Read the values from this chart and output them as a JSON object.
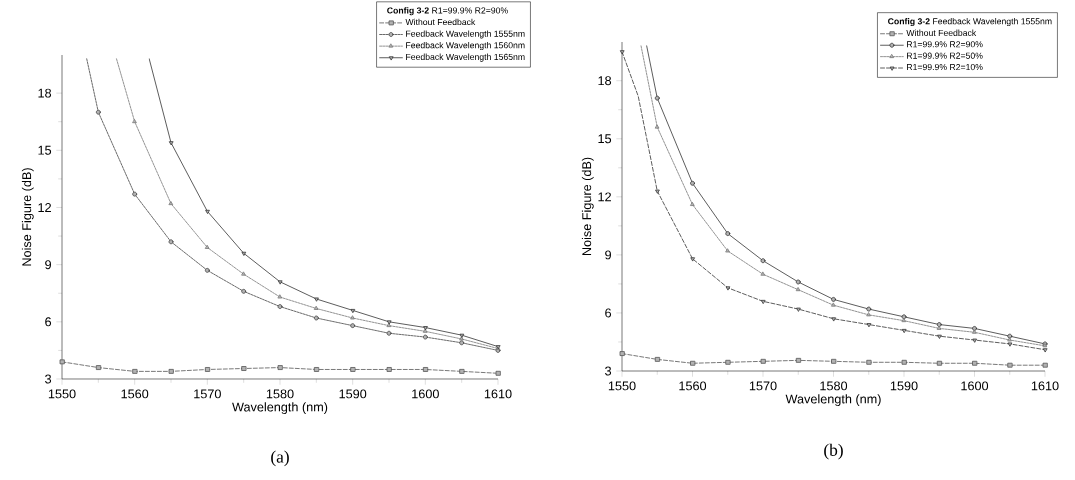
{
  "chart_data": [
    {
      "type": "line",
      "xlabel": "Wavelength (nm)",
      "ylabel": "Noise Figure (dB)",
      "legend_title": "**Config 3-2** R1=99.9% R2=90%",
      "legend": "top right",
      "grid": false,
      "xlim": [
        1550,
        1610
      ],
      "ylim": [
        3,
        20
      ],
      "xticks": [
        1550,
        1560,
        1570,
        1580,
        1590,
        1600,
        1610
      ],
      "yticks": [
        3,
        6,
        9,
        12,
        15,
        18
      ],
      "annotations": [
        "(a)"
      ],
      "series": [
        {
          "name": "Without Feedback",
          "color": "#555555",
          "marker": "square",
          "line_style": "dashed",
          "x": [
            1550,
            1555,
            1560,
            1565,
            1570,
            1575,
            1580,
            1585,
            1590,
            1595,
            1600,
            1605,
            1610
          ],
          "values": [
            3.9,
            3.6,
            3.4,
            3.4,
            3.5,
            3.55,
            3.6,
            3.5,
            3.5,
            3.5,
            3.5,
            3.4,
            3.3
          ]
        },
        {
          "name": "Feedback Wavelength 1555nm",
          "color": "#444444",
          "marker": "circle",
          "line_style": "dotted",
          "x": [
            1553.4,
            1555,
            1560,
            1565,
            1570,
            1575,
            1580,
            1585,
            1590,
            1595,
            1600,
            1605,
            1610
          ],
          "values": [
            19.8,
            17.0,
            12.7,
            10.2,
            8.7,
            7.6,
            6.8,
            6.2,
            5.8,
            5.4,
            5.2,
            4.9,
            4.5
          ]
        },
        {
          "name": "Feedback Wavelength 1560nm",
          "color": "#777777",
          "marker": "triangle",
          "line_style": "dotted",
          "x": [
            1557.5,
            1560,
            1565,
            1570,
            1575,
            1580,
            1585,
            1590,
            1595,
            1600,
            1605,
            1610
          ],
          "values": [
            19.8,
            16.5,
            12.2,
            9.9,
            8.5,
            7.3,
            6.7,
            6.2,
            5.8,
            5.5,
            5.1,
            4.6
          ]
        },
        {
          "name": "Feedback Wavelength 1565nm",
          "color": "#333333",
          "marker": "triangle-down",
          "line_style": "solid",
          "x": [
            1562,
            1565,
            1570,
            1575,
            1580,
            1585,
            1590,
            1595,
            1600,
            1605,
            1610
          ],
          "values": [
            19.8,
            15.4,
            11.8,
            9.6,
            8.1,
            7.2,
            6.6,
            6.0,
            5.7,
            5.3,
            4.7
          ]
        }
      ]
    },
    {
      "type": "line",
      "xlabel": "Wavelength (nm)",
      "ylabel": "Noise Figure (dB)",
      "legend_title": "**Config 3-2** Feedback Wavelength 1555nm",
      "legend": "top right",
      "grid": false,
      "xlim": [
        1550,
        1610
      ],
      "ylim": [
        3,
        20
      ],
      "xticks": [
        1550,
        1560,
        1570,
        1580,
        1590,
        1600,
        1610
      ],
      "yticks": [
        3,
        6,
        9,
        12,
        15,
        18
      ],
      "annotations": [
        "(b)"
      ],
      "series": [
        {
          "name": "Without Feedback",
          "color": "#555555",
          "marker": "square",
          "line_style": "dashed",
          "x": [
            1550,
            1555,
            1560,
            1565,
            1570,
            1575,
            1580,
            1585,
            1590,
            1595,
            1600,
            1605,
            1610
          ],
          "values": [
            3.9,
            3.6,
            3.4,
            3.45,
            3.5,
            3.55,
            3.5,
            3.45,
            3.45,
            3.4,
            3.4,
            3.3,
            3.3
          ]
        },
        {
          "name": "R1=99.9% R2=90%",
          "color": "#333333",
          "marker": "circle",
          "line_style": "solid",
          "x": [
            1553.5,
            1555,
            1560,
            1565,
            1570,
            1575,
            1580,
            1585,
            1590,
            1595,
            1600,
            1605,
            1610
          ],
          "values": [
            19.8,
            17.1,
            12.7,
            10.1,
            8.7,
            7.6,
            6.7,
            6.2,
            5.8,
            5.4,
            5.2,
            4.8,
            4.4
          ]
        },
        {
          "name": "R1=99.9% R2=50%",
          "color": "#777777",
          "marker": "triangle",
          "line_style": "dotted",
          "x": [
            1552.7,
            1555,
            1560,
            1565,
            1570,
            1575,
            1580,
            1585,
            1590,
            1595,
            1600,
            1605,
            1610
          ],
          "values": [
            19.8,
            15.6,
            11.6,
            9.2,
            8.0,
            7.2,
            6.4,
            5.9,
            5.6,
            5.2,
            5.0,
            4.6,
            4.3
          ]
        },
        {
          "name": "R1=99.9% R2=10%",
          "color": "#333333",
          "marker": "triangle-down",
          "line_style": "dashed",
          "x": [
            1550,
            1552.3,
            1555,
            1560,
            1565,
            1570,
            1575,
            1580,
            1585,
            1590,
            1595,
            1600,
            1605,
            1610
          ],
          "values": [
            19.5,
            17.2,
            12.3,
            8.8,
            7.3,
            6.6,
            6.2,
            5.7,
            5.4,
            5.1,
            4.8,
            4.6,
            4.4,
            4.1
          ]
        }
      ]
    }
  ]
}
